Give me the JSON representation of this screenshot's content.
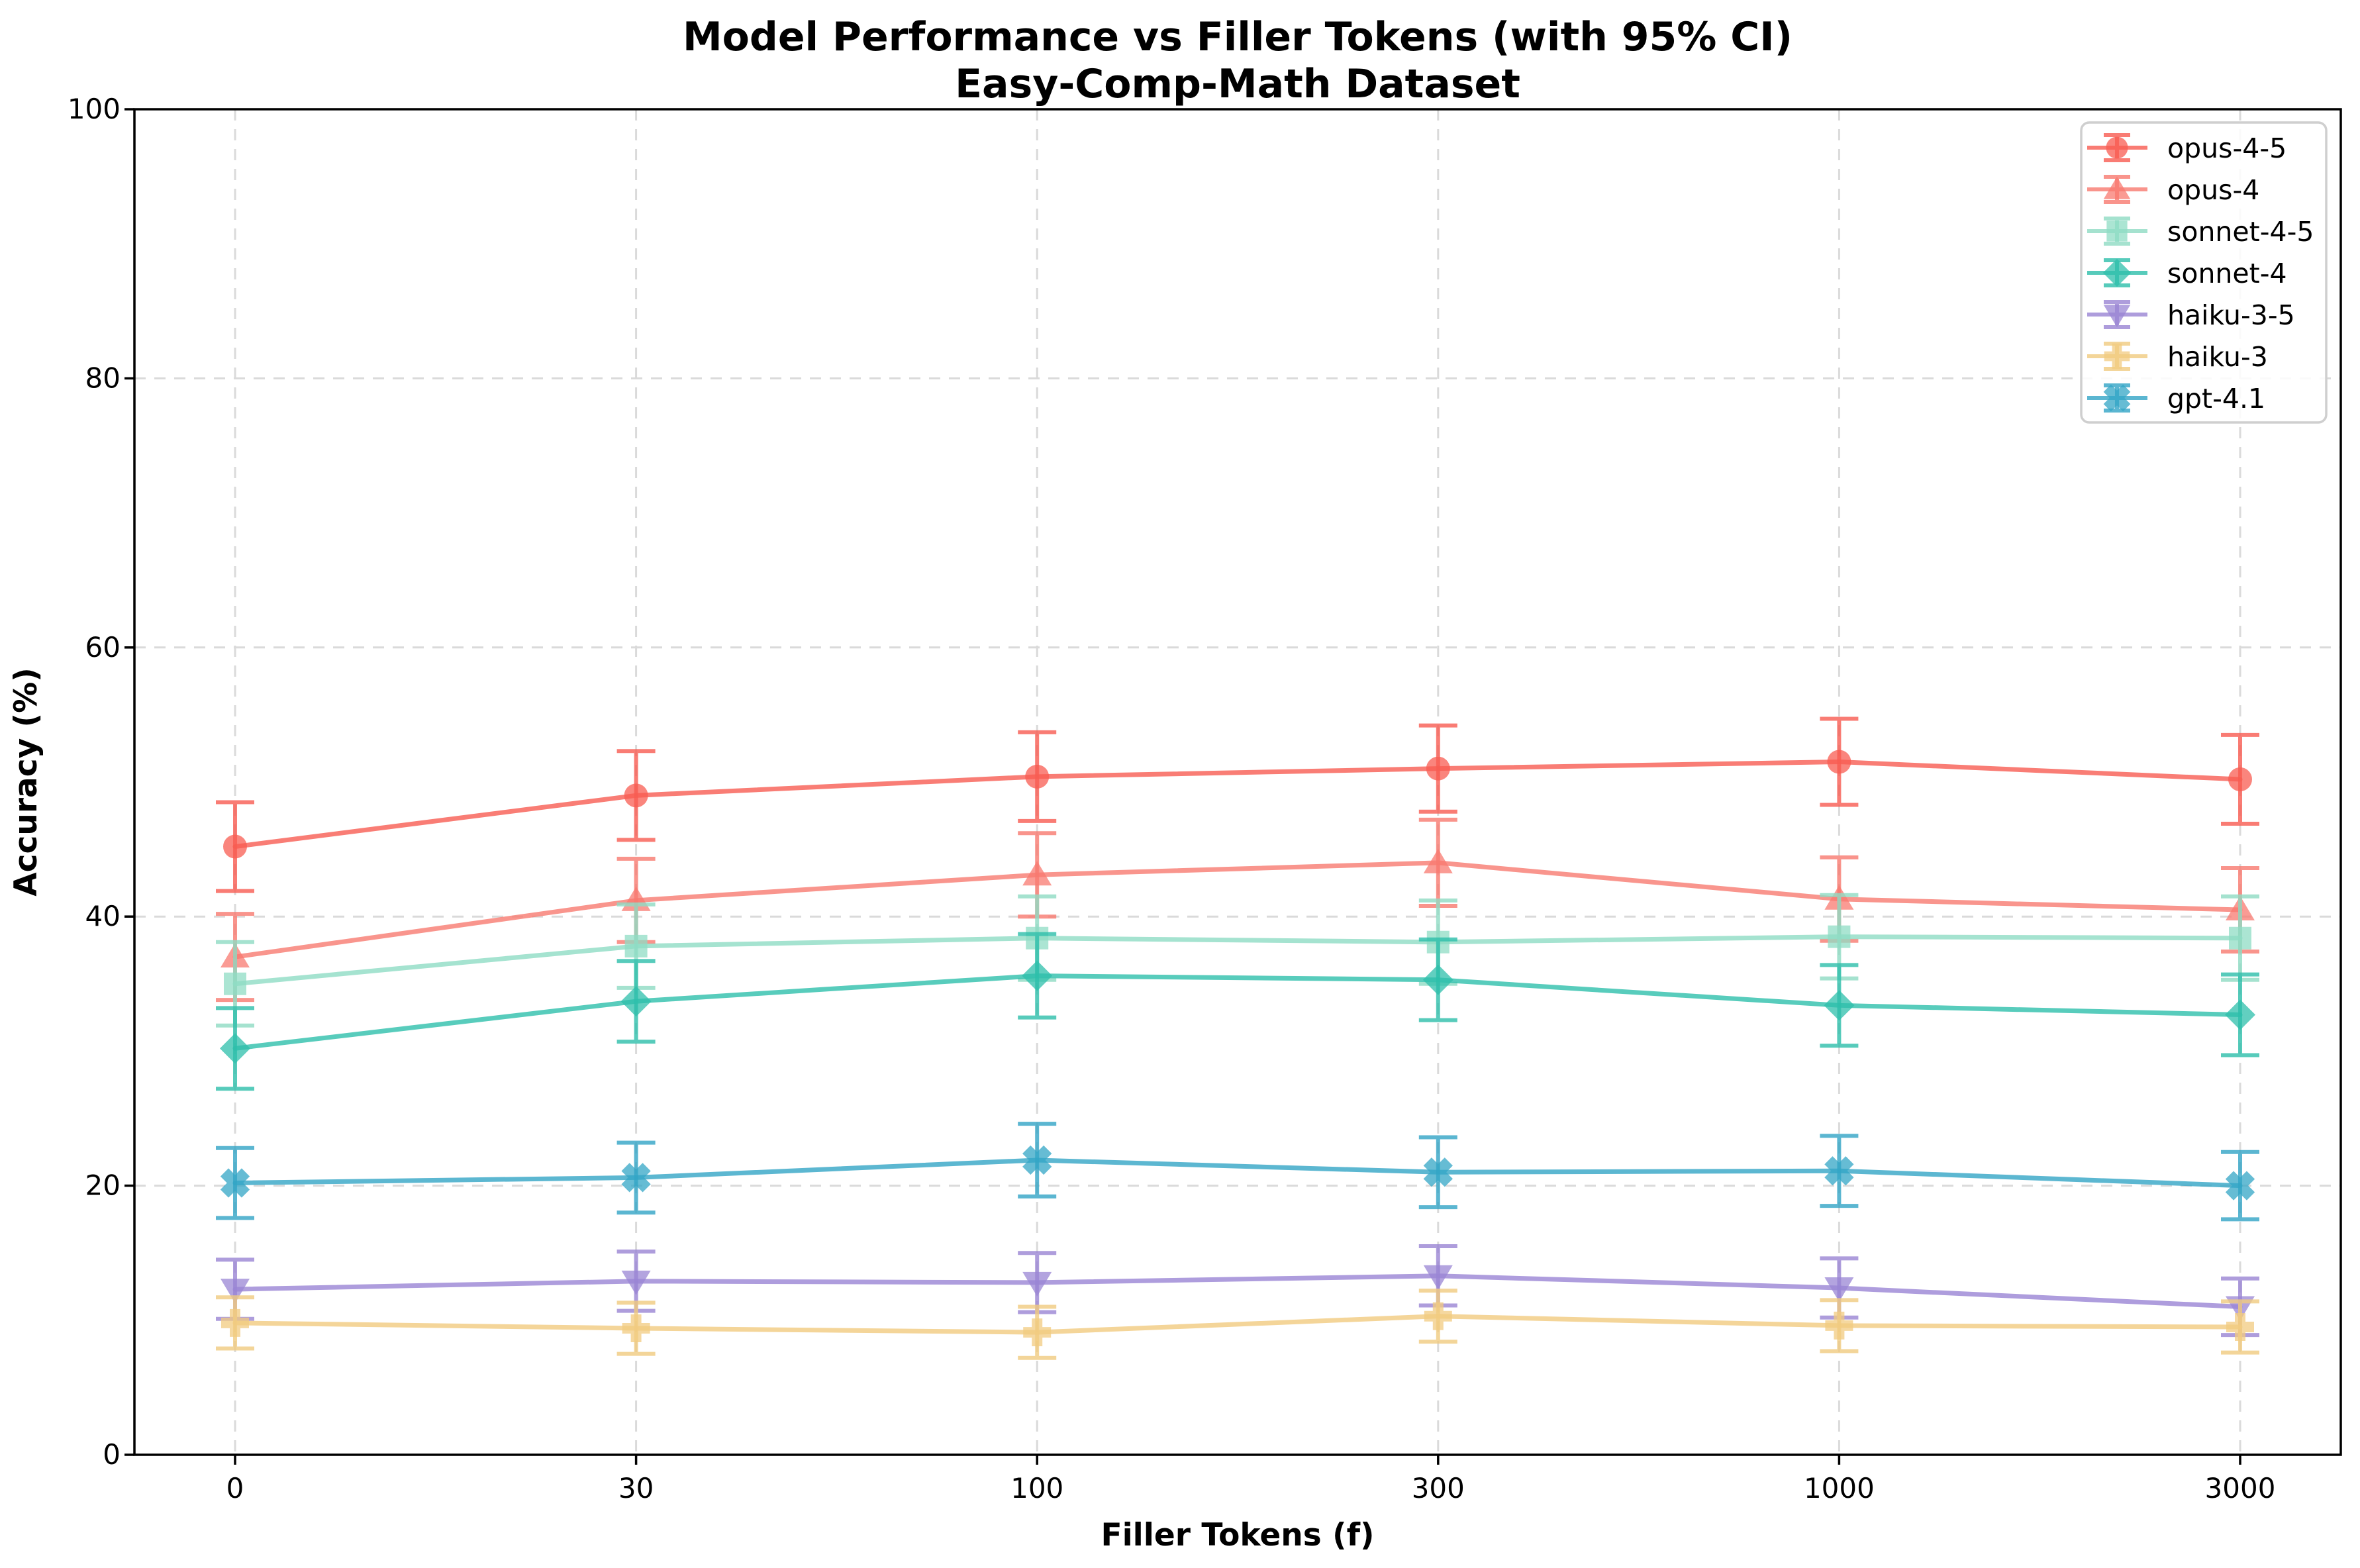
{
  "figure": {
    "title": "Model Performance vs Filler Tokens (with 95% CI)",
    "subtitle": "Easy-Comp-Math Dataset"
  },
  "chart_data": {
    "type": "line",
    "title": "Model Performance vs Filler Tokens (with 95% CI)",
    "subtitle": "Easy-Comp-Math Dataset",
    "xlabel": "Filler Tokens (f)",
    "ylabel": "Accuracy (%)",
    "x_tick_labels": [
      "0",
      "30",
      "100",
      "300",
      "1000",
      "3000"
    ],
    "x_categories": [
      0,
      30,
      100,
      300,
      1000,
      3000
    ],
    "y_ticks": [
      0,
      20,
      40,
      60,
      80,
      100
    ],
    "ylim": [
      0,
      100
    ],
    "grid": true,
    "grid_style": "dashed",
    "legend_position": "upper right",
    "error_bar_type": "95% CI",
    "series": [
      {
        "name": "opus-4-5",
        "color": "#F85C52",
        "marker": "circle",
        "values": [
          45.2,
          49.0,
          50.4,
          51.0,
          51.5,
          50.2
        ],
        "errors": [
          3.3,
          3.3,
          3.3,
          3.2,
          3.2,
          3.3
        ]
      },
      {
        "name": "opus-4",
        "color": "#F87A70",
        "marker": "triangle-up",
        "values": [
          37.0,
          41.2,
          43.1,
          44.0,
          41.3,
          40.5
        ],
        "errors": [
          3.2,
          3.1,
          3.1,
          3.2,
          3.1,
          3.1
        ]
      },
      {
        "name": "sonnet-4-5",
        "color": "#8FDCC4",
        "marker": "square",
        "values": [
          35.0,
          37.8,
          38.4,
          38.1,
          38.5,
          38.4
        ],
        "errors": [
          3.1,
          3.1,
          3.1,
          3.1,
          3.1,
          3.1
        ]
      },
      {
        "name": "sonnet-4",
        "color": "#2EBFAB",
        "marker": "diamond",
        "values": [
          30.2,
          33.7,
          35.6,
          35.3,
          33.4,
          32.7
        ],
        "errors": [
          3.0,
          3.0,
          3.1,
          3.0,
          3.0,
          3.0
        ]
      },
      {
        "name": "haiku-3-5",
        "color": "#9A85D4",
        "marker": "triangle-down",
        "values": [
          12.3,
          12.9,
          12.8,
          13.3,
          12.4,
          11.0
        ],
        "errors": [
          2.2,
          2.2,
          2.2,
          2.2,
          2.2,
          2.1
        ]
      },
      {
        "name": "haiku-3",
        "color": "#F1CB80",
        "marker": "plus",
        "values": [
          9.8,
          9.4,
          9.1,
          10.3,
          9.6,
          9.5
        ],
        "errors": [
          1.9,
          1.9,
          1.9,
          1.9,
          1.9,
          1.9
        ]
      },
      {
        "name": "gpt-4.1",
        "color": "#33A5C6",
        "marker": "x",
        "values": [
          20.2,
          20.6,
          21.9,
          21.0,
          21.1,
          20.0
        ],
        "errors": [
          2.6,
          2.6,
          2.7,
          2.6,
          2.6,
          2.5
        ]
      }
    ]
  }
}
